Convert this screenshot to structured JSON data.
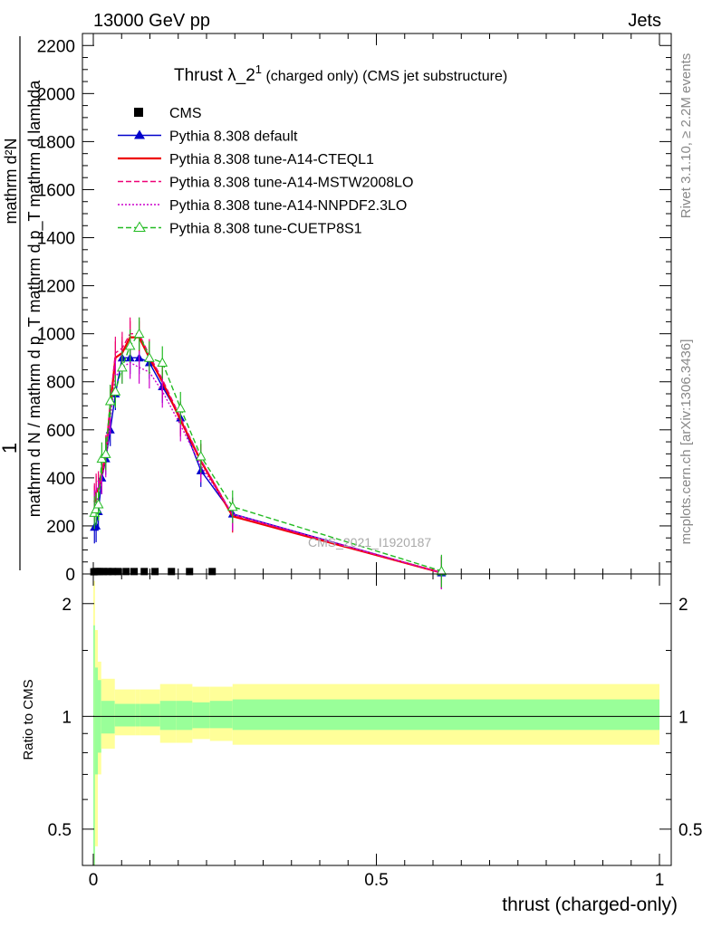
{
  "header": {
    "left": "13000 GeV pp",
    "right": "Jets"
  },
  "side": {
    "rivet": "Rivet 3.1.10, ≥ 2.2M events",
    "mcplots": "mcplots.cern.ch [arXiv:1306.3436]"
  },
  "chart_data": [
    {
      "type": "line",
      "title_main": "Thrust λ_2",
      "title_sup": "1",
      "title_rest": " (charged only) (CMS jet substructure)",
      "watermark": "CMS_2021_I1920187",
      "ylabel_num": "1",
      "ylabel_den": "mathrm d N / mathrm d p_T mathrm d p_T mathrm d lambda",
      "ylabel_dn": "mathrm d²N",
      "xlim": [
        0,
        1
      ],
      "ylim": [
        0,
        2250
      ],
      "yticks": [
        0,
        200,
        400,
        600,
        800,
        1000,
        1200,
        1400,
        1600,
        1800,
        2000,
        2200
      ],
      "ytick_labels": [
        "0",
        "200",
        "400",
        "600",
        "800",
        "1000",
        "1200",
        "1400",
        "1600",
        "1800",
        "2000",
        "2200"
      ],
      "legend_position": "top-left",
      "series": [
        {
          "name": "CMS",
          "color": "#000000",
          "style": "points",
          "x": [
            0.001,
            0.004,
            0.007,
            0.012,
            0.018,
            0.026,
            0.034,
            0.044,
            0.058,
            0.072,
            0.09,
            0.109,
            0.138,
            0.17,
            0.21
          ],
          "y": [
            9,
            10,
            10,
            10,
            10,
            10,
            10,
            10,
            10,
            10,
            10,
            10,
            10,
            10,
            10
          ]
        },
        {
          "name": "Pythia 8.308 default",
          "color": "#0000cc",
          "style": "solid-triangle",
          "x": [
            0.002,
            0.005,
            0.009,
            0.015,
            0.022,
            0.03,
            0.039,
            0.051,
            0.065,
            0.081,
            0.099,
            0.122,
            0.154,
            0.19,
            0.246,
            0.615
          ],
          "y": [
            195,
            200,
            260,
            400,
            480,
            600,
            750,
            900,
            900,
            900,
            880,
            780,
            650,
            430,
            250,
            5
          ]
        },
        {
          "name": "Pythia 8.308 tune-A14-CTEQL1",
          "color": "#ee0000",
          "style": "solid",
          "x": [
            0.002,
            0.005,
            0.009,
            0.015,
            0.022,
            0.03,
            0.039,
            0.051,
            0.065,
            0.081,
            0.099,
            0.122,
            0.154,
            0.19,
            0.246,
            0.615
          ],
          "y": [
            300,
            340,
            350,
            420,
            500,
            700,
            900,
            920,
            985,
            985,
            900,
            800,
            640,
            470,
            240,
            5
          ]
        },
        {
          "name": "Pythia 8.308 tune-A14-MSTW2008LO",
          "color": "#ee0077",
          "style": "dashed",
          "x": [
            0.002,
            0.005,
            0.009,
            0.015,
            0.022,
            0.03,
            0.039,
            0.051,
            0.065,
            0.081,
            0.099,
            0.122,
            0.154,
            0.19,
            0.246,
            0.615
          ],
          "y": [
            310,
            350,
            360,
            430,
            510,
            720,
            920,
            940,
            1000,
            1000,
            910,
            810,
            650,
            475,
            245,
            5
          ]
        },
        {
          "name": "Pythia 8.308 tune-A14-NNPDF2.3LO",
          "color": "#cc00cc",
          "style": "dotted",
          "x": [
            0.002,
            0.005,
            0.009,
            0.015,
            0.022,
            0.03,
            0.039,
            0.051,
            0.065,
            0.081,
            0.099,
            0.122,
            0.154,
            0.19,
            0.246,
            0.615
          ],
          "y": [
            280,
            300,
            320,
            400,
            470,
            650,
            820,
            860,
            880,
            860,
            840,
            760,
            620,
            450,
            250,
            5
          ]
        },
        {
          "name": "Pythia 8.308 tune-CUETP8S1",
          "color": "#22bb22",
          "style": "dashed-triangle-open",
          "x": [
            0.002,
            0.005,
            0.009,
            0.015,
            0.022,
            0.03,
            0.039,
            0.051,
            0.065,
            0.081,
            0.099,
            0.122,
            0.154,
            0.19,
            0.246,
            0.615
          ],
          "y": [
            255,
            270,
            290,
            480,
            500,
            720,
            760,
            860,
            950,
            1000,
            900,
            880,
            690,
            490,
            280,
            12
          ]
        }
      ]
    },
    {
      "type": "area",
      "ylabel": "Ratio to CMS",
      "xlabel": "thrust (charged-only)",
      "xlim": [
        0,
        1
      ],
      "ylim": [
        0.4,
        2.4
      ],
      "log_scale_y": true,
      "xticks": [
        0,
        0.5,
        1
      ],
      "xtick_labels": [
        "0",
        "0.5",
        "1"
      ],
      "yticks": [
        0.5,
        1,
        2
      ],
      "ytick_labels": [
        "0.5",
        "1",
        "2"
      ],
      "bands": {
        "edges": [
          0,
          0.003,
          0.008,
          0.014,
          0.038,
          0.074,
          0.083,
          0.118,
          0.146,
          0.175,
          0.206,
          0.246,
          1.0
        ],
        "green_lo": [
          0.35,
          0.7,
          0.8,
          0.9,
          0.94,
          0.94,
          0.94,
          0.92,
          0.92,
          0.93,
          0.93,
          0.92
        ],
        "green_hi": [
          1.75,
          1.35,
          1.25,
          1.1,
          1.08,
          1.08,
          1.08,
          1.1,
          1.1,
          1.09,
          1.1,
          1.11
        ],
        "yellow_lo": [
          0.2,
          0.45,
          0.7,
          0.82,
          0.89,
          0.89,
          0.89,
          0.85,
          0.85,
          0.87,
          0.86,
          0.84
        ],
        "yellow_hi": [
          2.3,
          1.7,
          1.4,
          1.26,
          1.18,
          1.18,
          1.18,
          1.22,
          1.22,
          1.2,
          1.2,
          1.22
        ],
        "green_color": "#99ff99",
        "yellow_color": "#ffff99"
      }
    }
  ]
}
